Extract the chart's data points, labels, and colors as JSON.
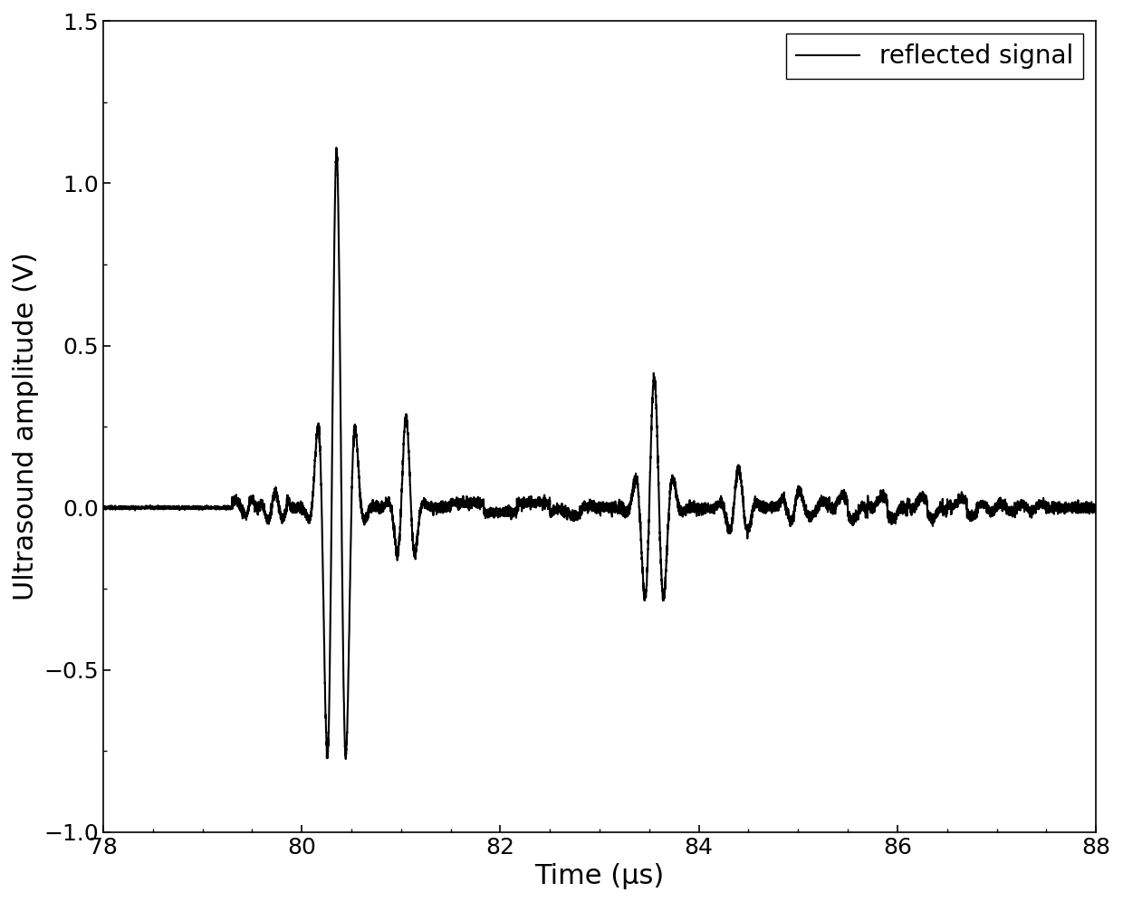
{
  "title": "",
  "xlabel": "Time (μs)",
  "ylabel": "Ultrasound amplitude (V)",
  "xlim": [
    78,
    88
  ],
  "ylim": [
    -1.0,
    1.5
  ],
  "xticks": [
    78,
    80,
    82,
    84,
    86,
    88
  ],
  "yticks": [
    -1.0,
    -0.5,
    0.0,
    0.5,
    1.0,
    1.5
  ],
  "legend_label": "reflected signal",
  "line_color": "#000000",
  "line_width": 1.5,
  "background_color": "#ffffff",
  "figure_size": [
    12.4,
    9.96
  ],
  "dpi": 100
}
